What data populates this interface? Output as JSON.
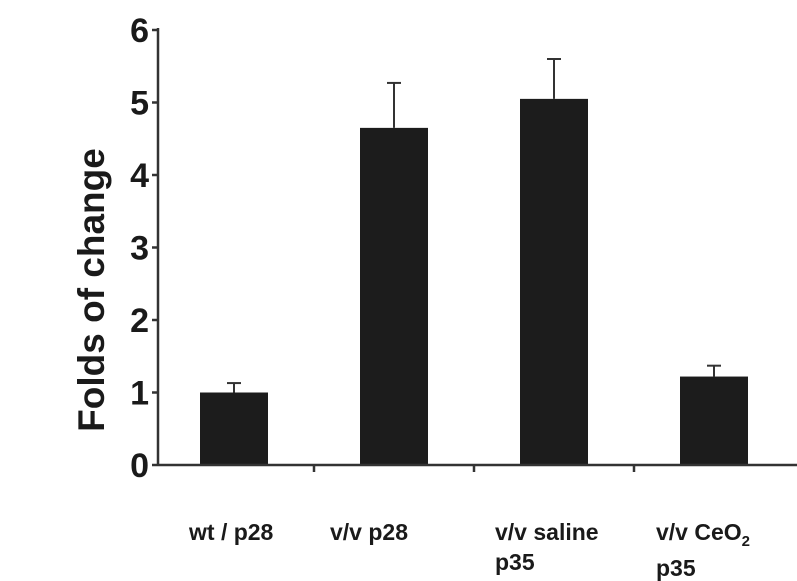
{
  "chart_data": {
    "type": "bar",
    "ylabel": "Folds of change",
    "ylim": [
      0,
      6
    ],
    "yticks": [
      0,
      1,
      2,
      3,
      4,
      5,
      6
    ],
    "grid": false,
    "categories": [
      {
        "lines": [
          "wt / p28"
        ]
      },
      {
        "lines": [
          "v/v p28"
        ]
      },
      {
        "lines": [
          "v/v saline",
          "p35"
        ]
      },
      {
        "lines": [
          "v/v CeO",
          "p35"
        ],
        "subscript": "2"
      }
    ],
    "values": [
      1.0,
      4.65,
      5.05,
      1.22
    ],
    "errors": [
      0.13,
      0.62,
      0.55,
      0.15
    ],
    "colors": {
      "bar": "#1c1c1c",
      "axis": "#333333"
    }
  }
}
